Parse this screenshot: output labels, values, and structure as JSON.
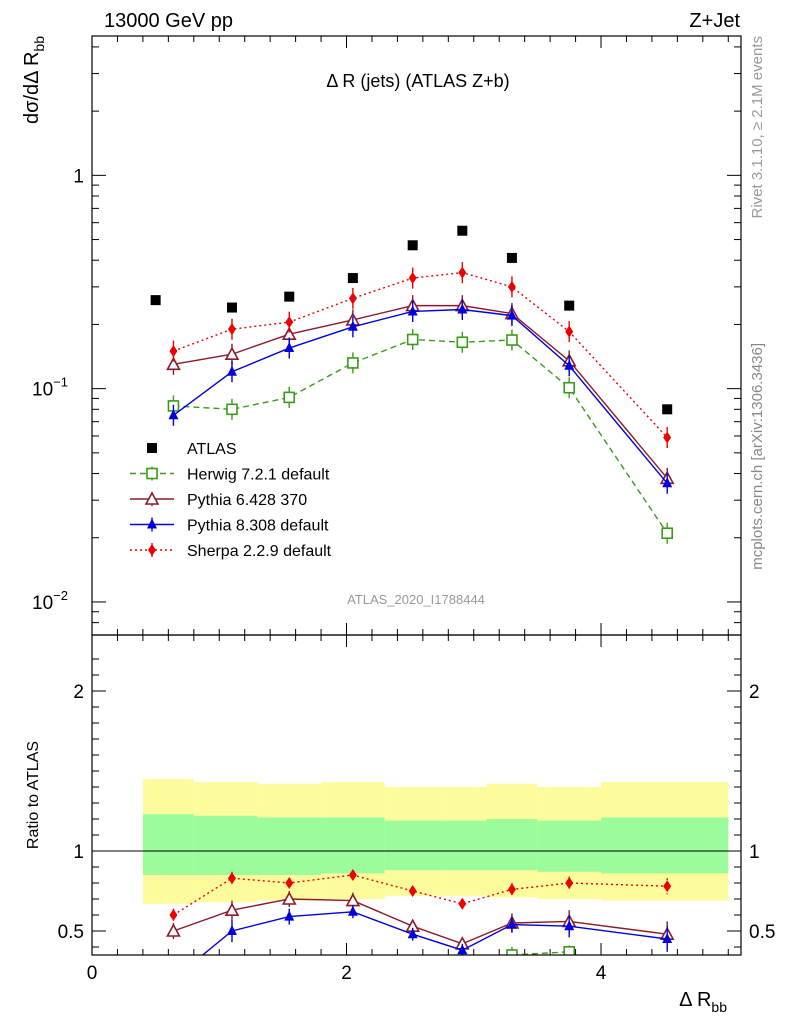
{
  "header": {
    "left": "13000 GeV pp",
    "right": "Z+Jet"
  },
  "side_labels": {
    "rivet": "Rivet 3.1.10, ≥ 2.1M events",
    "mcplots": "mcplots.cern.ch [arXiv:1306.3436]"
  },
  "chart_data": [
    {
      "type": "scatter",
      "panel": "main",
      "title": "Δ R (jets) (ATLAS Z+b)",
      "ylabel": "dσ/dΔ R_bb",
      "xlabel": "",
      "yscale": "log",
      "xlim": [
        0,
        5.1
      ],
      "ylim": [
        0.007,
        4.5
      ],
      "y_ticks": [
        {
          "v": 0.01,
          "base": "10",
          "exp": "−2"
        },
        {
          "v": 0.1,
          "base": "10",
          "exp": "−1"
        },
        {
          "v": 1,
          "base": "1",
          "exp": ""
        }
      ],
      "watermark": "ATLAS_2020_I1788444",
      "x": [
        0.48,
        1.08,
        1.54,
        2.05,
        2.52,
        2.91,
        3.3,
        3.75,
        4.52
      ],
      "series": [
        {
          "name": "ATLAS",
          "color": "#000000",
          "marker": "square-filled",
          "line": "none",
          "values": [
            0.26,
            0.24,
            0.27,
            0.33,
            0.47,
            0.55,
            0.41,
            0.245,
            0.08
          ],
          "x": [
            0.5,
            1.1,
            1.55,
            2.05,
            2.52,
            2.91,
            3.3,
            3.75,
            4.52
          ]
        },
        {
          "name": "Herwig 7.2.1 default",
          "color": "#3a9a1a",
          "marker": "square-open",
          "line": "dashed",
          "x": [
            0.64,
            1.1,
            1.55,
            2.05,
            2.52,
            2.91,
            3.3,
            3.75,
            4.52
          ],
          "values": [
            0.083,
            0.08,
            0.091,
            0.132,
            0.17,
            0.165,
            0.169,
            0.101,
            0.021
          ]
        },
        {
          "name": "Pythia 6.428 370",
          "color": "#8b1a2b",
          "marker": "triangle-open",
          "line": "solid",
          "x": [
            0.64,
            1.1,
            1.55,
            2.05,
            2.52,
            2.91,
            3.3,
            3.75,
            4.52
          ],
          "values": [
            0.13,
            0.145,
            0.18,
            0.21,
            0.245,
            0.245,
            0.225,
            0.135,
            0.038
          ]
        },
        {
          "name": "Pythia 8.308 default",
          "color": "#0000dd",
          "marker": "triangle-filled",
          "line": "solid",
          "x": [
            0.64,
            1.1,
            1.55,
            2.05,
            2.52,
            2.91,
            3.3,
            3.75,
            4.52
          ],
          "values": [
            0.075,
            0.12,
            0.155,
            0.195,
            0.23,
            0.235,
            0.22,
            0.128,
            0.036
          ]
        },
        {
          "name": "Sherpa 2.2.9 default",
          "color": "#ee0000",
          "marker": "diamond-filled",
          "line": "dotted",
          "x": [
            0.64,
            1.1,
            1.55,
            2.05,
            2.52,
            2.91,
            3.3,
            3.75,
            4.52
          ],
          "values": [
            0.15,
            0.19,
            0.205,
            0.265,
            0.33,
            0.35,
            0.3,
            0.185,
            0.059
          ]
        }
      ]
    },
    {
      "type": "line",
      "panel": "ratio",
      "ylabel": "Ratio to ATLAS",
      "xlabel": "Δ R_bb",
      "xlim": [
        0,
        5.1
      ],
      "ylim": [
        0.35,
        2.35
      ],
      "x_ticks": [
        0,
        2,
        4
      ],
      "y_ticks": [
        0.5,
        1,
        2
      ],
      "bands": {
        "edges": [
          0.4,
          0.8,
          1.3,
          1.8,
          2.3,
          2.75,
          3.1,
          3.5,
          4.0,
          5.0
        ],
        "inner_low": [
          0.85,
          0.85,
          0.85,
          0.86,
          0.88,
          0.88,
          0.88,
          0.87,
          0.86
        ],
        "inner_high": [
          1.23,
          1.22,
          1.21,
          1.21,
          1.19,
          1.19,
          1.2,
          1.19,
          1.21
        ],
        "outer_low": [
          0.67,
          0.68,
          0.69,
          0.7,
          0.72,
          0.72,
          0.71,
          0.7,
          0.69
        ],
        "outer_high": [
          1.45,
          1.43,
          1.42,
          1.43,
          1.4,
          1.4,
          1.42,
          1.4,
          1.43
        ],
        "inner_color": "#9cfc9c",
        "outer_color": "#fcfc9c"
      },
      "series": [
        {
          "name": "Herwig 7.2.1 default",
          "color": "#3a9a1a",
          "marker": "square-open",
          "line": "dashed",
          "x": [
            3.3,
            3.75
          ],
          "values": [
            0.35,
            0.37
          ],
          "up": [
            0.05,
            0.04
          ],
          "dn": [
            0.03,
            0.03
          ]
        },
        {
          "name": "Pythia 6.428 370",
          "color": "#8b1a2b",
          "marker": "triangle-open",
          "line": "solid",
          "x": [
            0.64,
            1.1,
            1.55,
            2.05,
            2.52,
            2.91,
            3.3,
            3.75,
            4.52
          ],
          "values": [
            0.5,
            0.63,
            0.7,
            0.69,
            0.53,
            0.42,
            0.55,
            0.56,
            0.48
          ],
          "up": [
            0.05,
            0.06,
            0.05,
            0.05,
            0.04,
            0.04,
            0.06,
            0.07,
            0.08
          ],
          "dn": [
            0.05,
            0.06,
            0.05,
            0.05,
            0.04,
            0.04,
            0.06,
            0.07,
            0.08
          ]
        },
        {
          "name": "Pythia 8.308 default",
          "color": "#0000dd",
          "marker": "triangle-filled",
          "line": "solid",
          "x": [
            0.64,
            1.1,
            1.55,
            2.05,
            2.52,
            2.91,
            3.3,
            3.75,
            4.52
          ],
          "values": [
            0.2,
            0.5,
            0.59,
            0.62,
            0.48,
            0.38,
            0.54,
            0.53,
            0.45
          ],
          "up": [
            0.05,
            0.07,
            0.05,
            0.04,
            0.04,
            0.04,
            0.05,
            0.07,
            0.08
          ],
          "dn": [
            0.05,
            0.07,
            0.05,
            0.04,
            0.04,
            0.04,
            0.05,
            0.07,
            0.08
          ]
        },
        {
          "name": "Sherpa 2.2.9 default",
          "color": "#ee0000",
          "marker": "diamond-filled",
          "line": "dotted",
          "x": [
            0.64,
            1.1,
            1.55,
            2.05,
            2.52,
            2.91,
            3.3,
            3.75,
            4.52
          ],
          "values": [
            0.6,
            0.83,
            0.8,
            0.85,
            0.75,
            0.67,
            0.76,
            0.8,
            0.78
          ],
          "up": [
            0.04,
            0.04,
            0.03,
            0.03,
            0.03,
            0.03,
            0.04,
            0.04,
            0.05
          ],
          "dn": [
            0.04,
            0.04,
            0.03,
            0.03,
            0.03,
            0.03,
            0.04,
            0.04,
            0.05
          ]
        }
      ]
    }
  ]
}
